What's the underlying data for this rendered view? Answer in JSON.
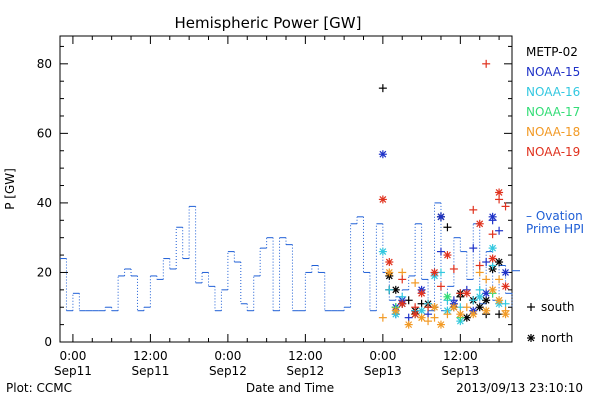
{
  "chart_data": {
    "type": "scatter",
    "title": "Hemispheric Power [GW]",
    "ylabel": "P [GW]",
    "xlabel": "Date and Time",
    "ylim": [
      0,
      88
    ],
    "xlim": [
      -2,
      68
    ],
    "y_ticks": [
      0,
      20,
      40,
      60,
      80
    ],
    "x_ticks": [
      {
        "h": 0,
        "time": "0:00",
        "date": "Sep11"
      },
      {
        "h": 12,
        "time": "12:00",
        "date": "Sep11"
      },
      {
        "h": 24,
        "time": "0:00",
        "date": "Sep12"
      },
      {
        "h": 36,
        "time": "12:00",
        "date": "Sep12"
      },
      {
        "h": 48,
        "time": "0:00",
        "date": "Sep13"
      },
      {
        "h": 60,
        "time": "12:00",
        "date": "Sep13"
      }
    ],
    "ovation": {
      "name": "– Ovation Prime HPI",
      "label_line1": "– Ovation",
      "label_line2": "Prime HPI",
      "color": "#1f5fd6",
      "x": [
        -2,
        -1,
        0,
        1,
        2,
        3,
        4,
        5,
        6,
        7,
        8,
        9,
        10,
        11,
        12,
        13,
        14,
        15,
        16,
        17,
        18,
        19,
        20,
        21,
        22,
        23,
        24,
        25,
        26,
        27,
        28,
        29,
        30,
        31,
        32,
        33,
        34,
        35,
        36,
        37,
        38,
        39,
        40,
        41,
        42,
        43,
        44,
        45,
        46,
        47,
        48,
        49,
        50,
        51,
        52,
        53,
        54,
        55,
        56,
        57,
        58,
        59,
        60,
        61,
        62,
        63,
        64,
        65,
        66,
        67,
        68
      ],
      "y": [
        24,
        9,
        14,
        9,
        9,
        9,
        9,
        10,
        9,
        19,
        21,
        19,
        9,
        10,
        19,
        18,
        24,
        21,
        33,
        24,
        39,
        17,
        20,
        16,
        9,
        15,
        26,
        23,
        11,
        9,
        19,
        27,
        30,
        9,
        30,
        28,
        9,
        9,
        20,
        22,
        20,
        9,
        9,
        9,
        10,
        34,
        36,
        20,
        9,
        34,
        20,
        12,
        13,
        15,
        19,
        34,
        18,
        9,
        40,
        9,
        16,
        30,
        26,
        18,
        34,
        11,
        26,
        12,
        22,
        14,
        10
      ]
    },
    "legend": [
      {
        "name": "METP-02",
        "color": "#000000"
      },
      {
        "name": "NOAA-15",
        "color": "#1f33c8"
      },
      {
        "name": "NOAA-16",
        "color": "#33c8e0"
      },
      {
        "name": "NOAA-17",
        "color": "#33dd77"
      },
      {
        "name": "NOAA-18",
        "color": "#f29a25"
      },
      {
        "name": "NOAA-19",
        "color": "#e0321e"
      }
    ],
    "marker_legend": [
      {
        "symbol": "+",
        "label": "south"
      },
      {
        "symbol": "*",
        "label": "north"
      }
    ],
    "series": [
      {
        "name": "METP-02",
        "color": "#000000",
        "south": [
          [
            48,
            73
          ],
          [
            49,
            15
          ],
          [
            52,
            12
          ],
          [
            54,
            11
          ],
          [
            56,
            10
          ],
          [
            58,
            33
          ],
          [
            60,
            13
          ],
          [
            62,
            12
          ],
          [
            64,
            8
          ],
          [
            66,
            8
          ]
        ],
        "north": [
          [
            49,
            19
          ],
          [
            50,
            15
          ],
          [
            51,
            11
          ],
          [
            53,
            9
          ],
          [
            55,
            11
          ],
          [
            57,
            36
          ],
          [
            59,
            10
          ],
          [
            61,
            7
          ],
          [
            62,
            12
          ],
          [
            63,
            10
          ],
          [
            64,
            12
          ],
          [
            65,
            21
          ],
          [
            66,
            23
          ],
          [
            60,
            14
          ]
        ]
      },
      {
        "name": "NOAA-15",
        "color": "#1f33c8",
        "south": [
          [
            50,
            8
          ],
          [
            52,
            7
          ],
          [
            55,
            8
          ],
          [
            57,
            26
          ],
          [
            59,
            12
          ],
          [
            61,
            15
          ],
          [
            62,
            27
          ],
          [
            64,
            23
          ],
          [
            65,
            35
          ],
          [
            66,
            32
          ],
          [
            53,
            9
          ]
        ],
        "north": [
          [
            48,
            54
          ],
          [
            50,
            10
          ],
          [
            51,
            12
          ],
          [
            54,
            15
          ],
          [
            57,
            36
          ],
          [
            59,
            11
          ],
          [
            62,
            9
          ],
          [
            64,
            14
          ],
          [
            65,
            36
          ],
          [
            67,
            20
          ]
        ]
      },
      {
        "name": "NOAA-16",
        "color": "#33c8e0",
        "south": [
          [
            49,
            15
          ],
          [
            51,
            13
          ],
          [
            53,
            9
          ],
          [
            55,
            11
          ],
          [
            57,
            20
          ],
          [
            58,
            12
          ],
          [
            60,
            10
          ],
          [
            62,
            12
          ],
          [
            63,
            15
          ],
          [
            65,
            22
          ],
          [
            67,
            11
          ]
        ],
        "north": [
          [
            48,
            26
          ],
          [
            50,
            8
          ],
          [
            54,
            9
          ],
          [
            56,
            19
          ],
          [
            58,
            9
          ],
          [
            60,
            6
          ],
          [
            63,
            13
          ],
          [
            65,
            27
          ],
          [
            66,
            11
          ]
        ]
      },
      {
        "name": "NOAA-17",
        "color": "#33dd77",
        "south": [
          [
            50,
            10
          ],
          [
            55,
            10
          ],
          [
            60,
            7
          ],
          [
            65,
            14
          ]
        ],
        "north": [
          [
            53,
            8
          ],
          [
            58,
            13
          ]
        ]
      },
      {
        "name": "NOAA-18",
        "color": "#f29a25",
        "south": [
          [
            48,
            7
          ],
          [
            51,
            20
          ],
          [
            53,
            17
          ],
          [
            55,
            6
          ],
          [
            56,
            7
          ],
          [
            58,
            8
          ],
          [
            61,
            10
          ],
          [
            63,
            20
          ],
          [
            64,
            18
          ],
          [
            66,
            18
          ],
          [
            67,
            9
          ]
        ],
        "north": [
          [
            49,
            20
          ],
          [
            50,
            9
          ],
          [
            52,
            5
          ],
          [
            54,
            7
          ],
          [
            56,
            10
          ],
          [
            57,
            5
          ],
          [
            59,
            10
          ],
          [
            60,
            8
          ],
          [
            62,
            8
          ],
          [
            64,
            9
          ],
          [
            65,
            15
          ],
          [
            66,
            12
          ],
          [
            67,
            8
          ]
        ]
      },
      {
        "name": "NOAA-19",
        "color": "#e0321e",
        "south": [
          [
            51,
            18
          ],
          [
            53,
            10
          ],
          [
            55,
            10
          ],
          [
            57,
            16
          ],
          [
            59,
            21
          ],
          [
            60,
            14
          ],
          [
            62,
            38
          ],
          [
            63,
            22
          ],
          [
            64,
            80
          ],
          [
            65,
            31
          ],
          [
            66,
            41
          ],
          [
            67,
            39
          ]
        ],
        "north": [
          [
            48,
            41
          ],
          [
            49,
            23
          ],
          [
            51,
            11
          ],
          [
            53,
            8
          ],
          [
            54,
            14
          ],
          [
            56,
            20
          ],
          [
            58,
            25
          ],
          [
            61,
            14
          ],
          [
            63,
            34
          ],
          [
            65,
            24
          ],
          [
            66,
            43
          ],
          [
            67,
            16
          ]
        ]
      }
    ]
  },
  "footer": {
    "source": "Plot: CCMC",
    "timestamp": "2013/09/13 23:10:10"
  }
}
